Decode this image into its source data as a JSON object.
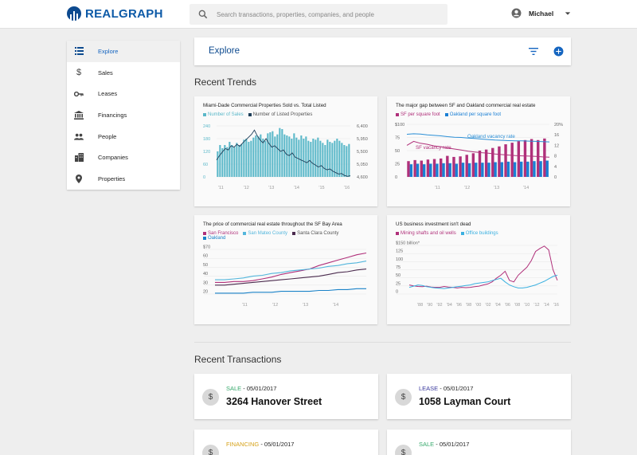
{
  "app": {
    "name": "REALGRAPH"
  },
  "search": {
    "placeholder": "Search transactions, properties, companies, and people"
  },
  "user": {
    "name": "Michael"
  },
  "sidebar": {
    "items": [
      {
        "label": "Explore",
        "icon": "list-icon",
        "active": true
      },
      {
        "label": "Sales",
        "icon": "dollar-icon"
      },
      {
        "label": "Leases",
        "icon": "key-icon"
      },
      {
        "label": "Financings",
        "icon": "bank-icon"
      },
      {
        "label": "People",
        "icon": "people-icon"
      },
      {
        "label": "Companies",
        "icon": "building-icon"
      },
      {
        "label": "Properties",
        "icon": "pin-icon"
      }
    ]
  },
  "explore": {
    "title": "Explore"
  },
  "trends": {
    "title": "Recent Trends"
  },
  "transactions": {
    "title": "Recent Transactions",
    "items": [
      {
        "type": "SALE",
        "type_color": "#3aaa6e",
        "date": " - 05/01/2017",
        "address": "3264 Hanover Street"
      },
      {
        "type": "LEASE",
        "type_color": "#3b3a9e",
        "date": " - 05/01/2017",
        "address": "1058 Layman Court"
      },
      {
        "type": "FINANCING",
        "type_color": "#d6a21a",
        "date": " - 05/01/2017",
        "address": ""
      },
      {
        "type": "SALE",
        "type_color": "#3aaa6e",
        "date": " - 05/01/2017",
        "address": ""
      }
    ]
  },
  "chart_data": [
    {
      "type": "bar",
      "title": "Miami-Dade Commercial Properties Sold vs. Total Listed",
      "series": [
        {
          "name": "Number of Sales",
          "color": "#5bb8c9",
          "axis": "left"
        },
        {
          "name": "Number of Listed Properties",
          "color": "#1f3f5a",
          "axis": "right"
        }
      ],
      "x_ticks": [
        "'11",
        "'12",
        "'13",
        "'14",
        "'15",
        "'16"
      ],
      "y_left_ticks": [
        "0",
        "60",
        "120",
        "180",
        "240"
      ],
      "y_right_ticks": [
        "4,600",
        "5,050",
        "5,500",
        "5,950",
        "6,400"
      ],
      "ylim_left": [
        0,
        240
      ],
      "ylim_right": [
        4600,
        6400
      ],
      "sales": [
        120,
        150,
        135,
        150,
        140,
        165,
        150,
        140,
        160,
        150,
        155,
        175,
        180,
        165,
        170,
        185,
        195,
        190,
        200,
        180,
        170,
        205,
        210,
        215,
        190,
        200,
        230,
        225,
        200,
        195,
        190,
        180,
        205,
        185,
        175,
        195,
        180,
        190,
        170,
        165,
        180,
        175,
        185,
        170,
        160,
        150,
        175,
        165,
        160,
        170,
        180,
        170,
        160,
        150,
        145,
        155
      ],
      "listed": [
        5200,
        5350,
        5480,
        5600,
        5550,
        5700,
        5650,
        5750,
        5680,
        5800,
        5900,
        6000,
        6100,
        6250,
        6050,
        5900,
        5800,
        5950,
        5780,
        5650,
        5700,
        5600,
        5500,
        5550,
        5400,
        5350,
        5450,
        5300,
        5250,
        5200,
        5150,
        5100,
        5180,
        5080,
        5020,
        4950,
        5000,
        4900,
        4850,
        4880,
        4800,
        4750,
        4700,
        4720,
        4650,
        4620,
        4640
      ]
    },
    {
      "type": "bar",
      "title": "The major gap between SF and Oakland commercial real estate",
      "series": [
        {
          "name": "SF per square foot",
          "color": "#b0307a",
          "axis": "left"
        },
        {
          "name": "Oakland per square foot",
          "color": "#1a7fd4",
          "axis": "left"
        },
        {
          "name": "Oakland vacancy rate",
          "color": "#2b8fd6",
          "axis": "right",
          "label": "Oakland vacancy rate"
        },
        {
          "name": "SF vacancy rate",
          "color": "#b0307a",
          "axis": "right",
          "label": "SF vacancy rate"
        }
      ],
      "x_ticks": [
        "'11",
        "'12",
        "'13",
        "'14"
      ],
      "y_left_ticks": [
        "$100",
        "75",
        "50",
        "25",
        "0"
      ],
      "y_right_ticks": [
        "20%",
        "16",
        "12",
        "8",
        "4",
        "0"
      ],
      "ylim_left": [
        0,
        100
      ],
      "ylim_right": [
        0,
        20
      ],
      "sf": [
        30,
        32,
        31,
        33,
        34,
        35,
        40,
        38,
        39,
        42,
        45,
        50,
        52,
        55,
        58,
        62,
        65,
        68,
        70,
        72,
        70,
        73
      ],
      "oakland": [
        24,
        25,
        24,
        25,
        25,
        26,
        26,
        25,
        27,
        26,
        27,
        27,
        27,
        28,
        28,
        29,
        28,
        29,
        29,
        30,
        30,
        31
      ],
      "oakland_vacancy": [
        16.2,
        16.4,
        16.3,
        16.0,
        15.8,
        15.6,
        15.3,
        15.1,
        15.0,
        14.8,
        14.6,
        14.4,
        14.2,
        14.0,
        13.9,
        13.8,
        13.7,
        13.7,
        13.6,
        13.5,
        13.4,
        13.3
      ],
      "sf_vacancy": [
        12.0,
        13.5,
        12.8,
        12.4,
        11.8,
        11.5,
        11.0,
        10.6,
        10.2,
        9.8,
        9.5,
        9.2,
        9.0,
        8.7,
        8.5,
        8.3,
        8.1,
        8.0,
        7.9,
        7.8,
        7.6,
        7.5
      ]
    },
    {
      "type": "line",
      "title": "The price of commercial real estate throughout the SF Bay Area",
      "series": [
        {
          "name": "San Francisco",
          "color": "#b0307a",
          "values": [
            33,
            33,
            34,
            34,
            35,
            37,
            39,
            42,
            44,
            46,
            48,
            52,
            55,
            58,
            61,
            64,
            66
          ]
        },
        {
          "name": "San Mateo County",
          "color": "#53b6dc",
          "values": [
            36,
            36,
            37,
            38,
            40,
            41,
            43,
            44,
            46,
            47,
            48,
            49,
            51,
            52,
            54,
            55,
            57
          ]
        },
        {
          "name": "Santa Clara County",
          "color": "#4b2b4e",
          "values": [
            30,
            30,
            31,
            32,
            33,
            34,
            35,
            36,
            37,
            38,
            39,
            40,
            42,
            44,
            45,
            47,
            48
          ]
        },
        {
          "name": "Oakland",
          "color": "#1a82c8",
          "values": [
            21,
            21,
            21,
            21,
            22,
            22,
            22,
            23,
            23,
            23,
            23,
            24,
            24,
            25,
            25,
            26,
            26
          ]
        }
      ],
      "x_ticks": [
        "'11",
        "'12",
        "'13",
        "'14"
      ],
      "y_ticks": [
        "$70",
        "60",
        "50",
        "40",
        "30",
        "20"
      ],
      "ylim": [
        20,
        70
      ]
    },
    {
      "type": "line",
      "title": "US business investment isn't dead",
      "series": [
        {
          "name": "Mining shafts and oil wells",
          "color": "#b0307a",
          "values": [
            30,
            27,
            25,
            24,
            26,
            23,
            22,
            22,
            25,
            23,
            22,
            20,
            22,
            21,
            22,
            24,
            26,
            30,
            33,
            40,
            52,
            62,
            75,
            45,
            40,
            62,
            75,
            88,
            110,
            140,
            150,
            158,
            145,
            80,
            45
          ]
        },
        {
          "name": "Office buildings",
          "color": "#3ab0e0",
          "values": [
            22,
            26,
            30,
            28,
            24,
            22,
            20,
            19,
            18,
            20,
            22,
            24,
            26,
            28,
            30,
            34,
            36,
            38,
            40,
            44,
            48,
            52,
            40,
            30,
            24,
            20,
            20,
            22,
            26,
            30,
            36,
            42,
            50,
            58,
            62
          ]
        }
      ],
      "x_ticks": [
        "'88",
        "'90",
        "'92",
        "'94",
        "'96",
        "'98",
        "'00",
        "'02",
        "'04",
        "'06",
        "'08",
        "'10",
        "'12",
        "'14",
        "'16"
      ],
      "y_ticks": [
        "$150 billion*",
        "125",
        "100",
        "75",
        "50",
        "25",
        "0"
      ],
      "ylim": [
        0,
        160
      ]
    }
  ]
}
